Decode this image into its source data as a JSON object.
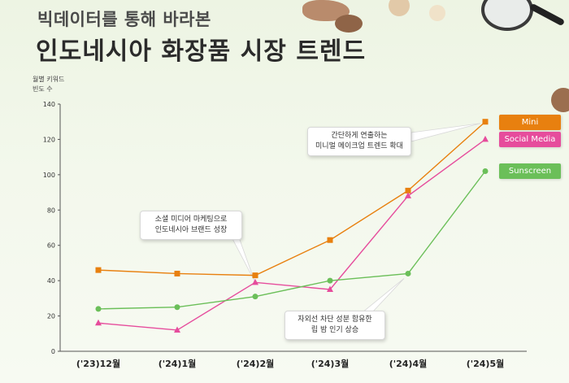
{
  "header": {
    "subtitle": "빅데이터를 통해 바라본",
    "title": "인도네시아 화장품 시장 트렌드"
  },
  "chart_data": {
    "type": "line",
    "ylabel_lines": [
      "월별 키워드",
      "빈도 수"
    ],
    "categories": [
      "('23)12월",
      "('24)1월",
      "('24)2월",
      "('24)3월",
      "('24)4월",
      "('24)5월"
    ],
    "ylim": [
      0,
      140
    ],
    "yticks": [
      0,
      20,
      40,
      60,
      80,
      100,
      120,
      140
    ],
    "grid": false,
    "legend_placement": "right",
    "series": [
      {
        "name": "Mini",
        "color": "#e8800f",
        "marker": "square",
        "values": [
          46,
          44,
          43,
          63,
          91,
          130
        ]
      },
      {
        "name": "Social Media",
        "color": "#e64c9c",
        "marker": "triangle",
        "values": [
          16,
          12,
          39,
          35,
          88,
          120
        ]
      },
      {
        "name": "Sunscreen",
        "color": "#6bbf59",
        "marker": "circle",
        "values": [
          24,
          25,
          31,
          40,
          44,
          102
        ]
      }
    ],
    "annotations": [
      {
        "lines": [
          "간단하게 연출하는",
          "미니멀 메이크업 트렌드 확대"
        ]
      },
      {
        "lines": [
          "소셜 미디어 마케팅으로",
          "인도네시아 브랜드 성장"
        ]
      },
      {
        "lines": [
          "자외선 차단 성분 함유한",
          "립 밤 인기 상승"
        ]
      }
    ]
  }
}
